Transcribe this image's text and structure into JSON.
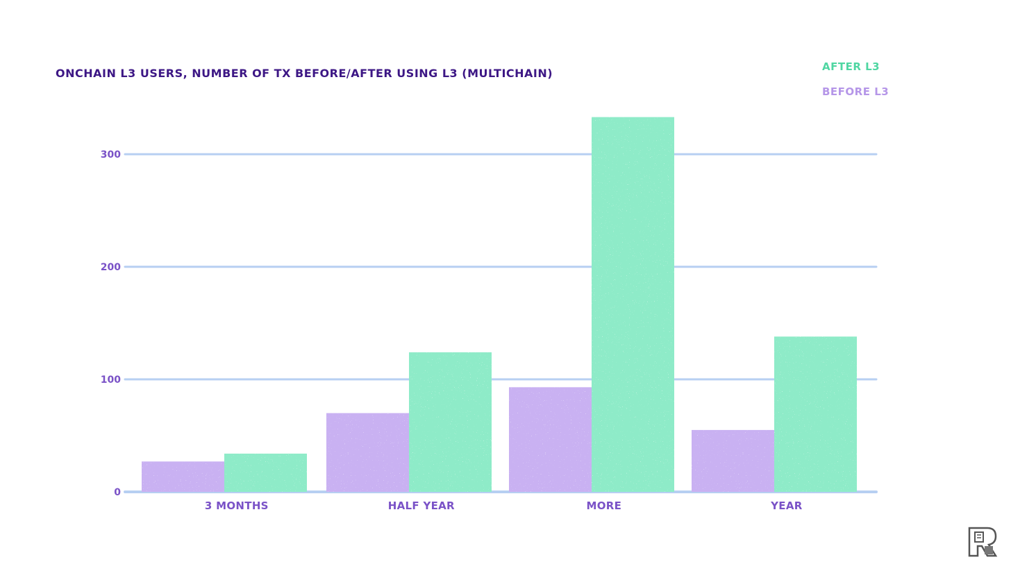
{
  "chart_data": {
    "type": "bar",
    "title": "ONCHAIN L3 USERS, NUMBER OF TX BEFORE/AFTER USING L3 (MULTICHAIN)",
    "xlabel": "",
    "ylabel": "",
    "categories": [
      "3 MONTHS",
      "HALF YEAR",
      "MORE",
      "YEAR"
    ],
    "series": [
      {
        "name": "BEFORE L3",
        "color": "#c9b1f2",
        "values": [
          27,
          70,
          93,
          55
        ]
      },
      {
        "name": "AFTER L3",
        "color": "#8eebc8",
        "values": [
          34,
          124,
          333,
          138
        ]
      }
    ],
    "ylim": [
      0,
      340
    ],
    "yticks": [
      0,
      100,
      200,
      300
    ],
    "grid": true,
    "legend_position": "top-right",
    "colors": {
      "title": "#3d1785",
      "tick_text": "#7a52c7",
      "category_text": "#7a52c7",
      "gridline": "#b7cff2",
      "after_legend_text": "#4fd6a2",
      "before_legend_text": "#b596e8"
    }
  },
  "legend": {
    "after_label": "AFTER L3",
    "before_label": "BEFORE L3"
  },
  "logo": {
    "icon": "publisher-logo-icon"
  }
}
